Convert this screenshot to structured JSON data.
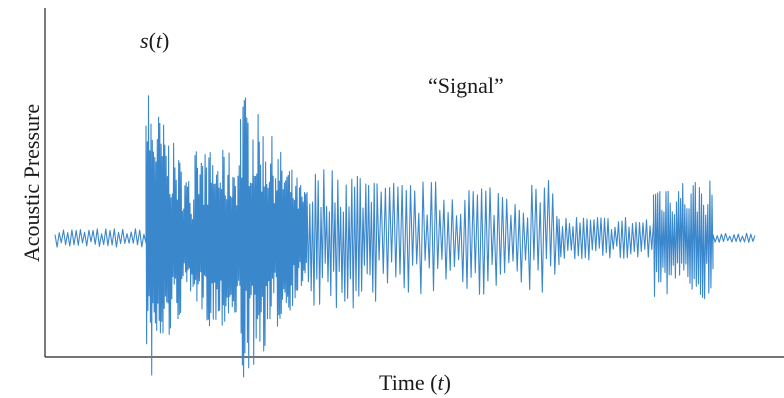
{
  "chart_data": {
    "type": "line",
    "title": "",
    "xlabel_text": "Time (",
    "xlabel_var": "t",
    "xlabel_close": ")",
    "ylabel": "Acoustic Pressure",
    "series_label_var": "s",
    "series_label_open": "(",
    "series_label_arg": "t",
    "series_label_close": ")",
    "annotation": "“Signal”",
    "color": "#3b87cc",
    "axis_color": "#222222",
    "x_ticks": [],
    "y_ticks": [],
    "grid": false,
    "baseline": 0,
    "y_range": [
      -1.0,
      1.0
    ],
    "segments": [
      {
        "t0": 0.0,
        "t1": 0.13,
        "amp": 0.06,
        "period": 0.006
      },
      {
        "t0": 0.13,
        "t1": 0.2,
        "amp": 0.98,
        "period": 0.0018,
        "decay": true
      },
      {
        "t0": 0.2,
        "t1": 0.265,
        "amp": 0.55,
        "period": 0.0018
      },
      {
        "t0": 0.265,
        "t1": 0.36,
        "amp": 0.95,
        "period": 0.0018,
        "decay": true
      },
      {
        "t0": 0.36,
        "t1": 0.46,
        "amp": 0.45,
        "period": 0.004
      },
      {
        "t0": 0.46,
        "t1": 0.72,
        "amp": 0.36,
        "period": 0.006
      },
      {
        "t0": 0.72,
        "t1": 0.855,
        "amp": 0.14,
        "period": 0.005
      },
      {
        "t0": 0.855,
        "t1": 0.94,
        "amp": 0.38,
        "period": 0.003
      },
      {
        "t0": 0.94,
        "t1": 1.0,
        "amp": 0.03,
        "period": 0.006
      }
    ]
  }
}
